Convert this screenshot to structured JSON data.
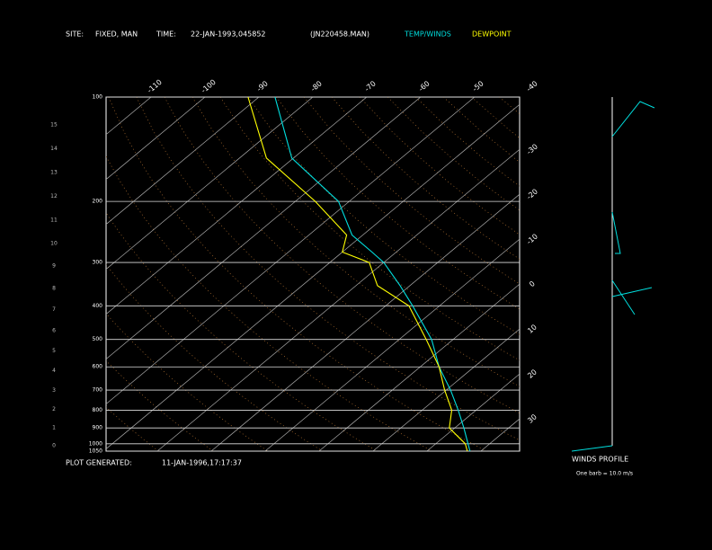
{
  "header": {
    "site_label": "SITE:",
    "site": "FIXED, MAN",
    "time_label": "TIME:",
    "time": "22-JAN-1993,045852",
    "file": "(JN220458.MAN)"
  },
  "footer": {
    "generated_label": "PLOT GENERATED:",
    "generated": "11-JAN-1996,17:17:37",
    "winds_title": "WINDS PROFILE",
    "barb_note": "One barb = 10.0 m/s"
  },
  "chart_data": {
    "type": "skew-t",
    "pressure": [
      1050,
      1000,
      900,
      800,
      700,
      600,
      500,
      400,
      350,
      300,
      280,
      250,
      200,
      150,
      100
    ],
    "series": [
      {
        "name": "TEMP/WINDS",
        "color": "#00dede",
        "values": [
          28,
          26,
          21.7,
          16.7,
          10.8,
          3.5,
          -4,
          -15,
          -21.8,
          -30,
          -34.5,
          -42,
          -52,
          -70.3,
          -87
        ]
      },
      {
        "name": "DEWPOINT",
        "color": "#ffff00",
        "values": [
          27.5,
          25.5,
          19,
          15.5,
          9.7,
          3.5,
          -5,
          -15.7,
          -26,
          -32.7,
          -40,
          -43,
          -56.3,
          -75,
          -92
        ]
      }
    ],
    "ylim": [
      100,
      1050
    ],
    "ylog": true,
    "yticks": [
      100,
      200,
      300,
      400,
      500,
      600,
      700,
      800,
      900,
      1000,
      1050
    ],
    "xlim": [
      -39.5,
      37.2
    ],
    "xticks": [
      -110,
      -100,
      -90,
      -80,
      -70,
      -60,
      -50,
      -40,
      -30,
      -20,
      -10,
      0,
      10,
      20,
      30
    ],
    "zticks": [
      0,
      1,
      2,
      3,
      4,
      5,
      6,
      7,
      8,
      9,
      10,
      11,
      12,
      13,
      14,
      15
    ]
  }
}
